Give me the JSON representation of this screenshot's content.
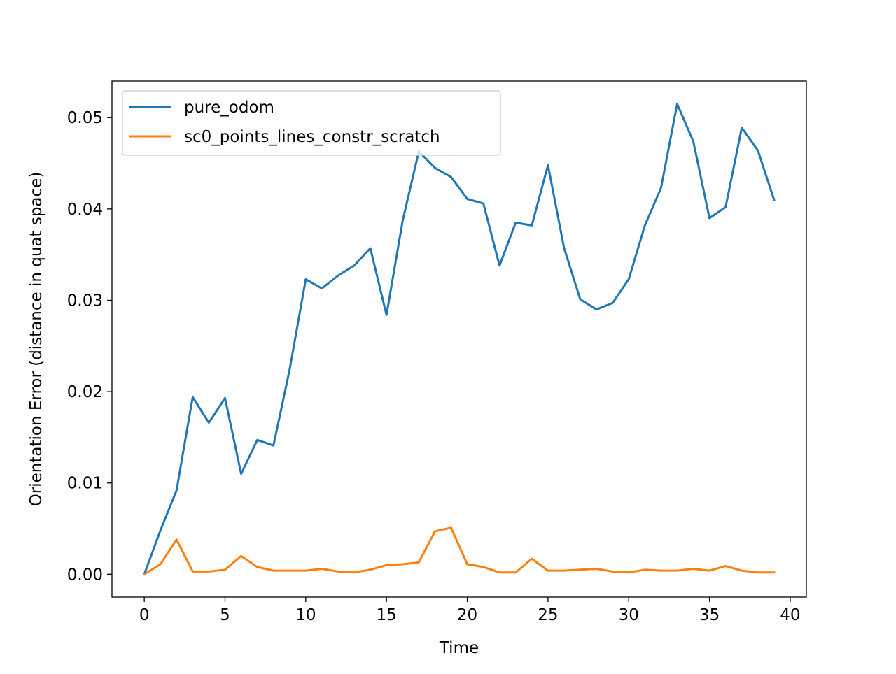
{
  "chart_data": {
    "type": "line",
    "title": "",
    "xlabel": "Time",
    "ylabel": "Orientation Error (distance in quat space)",
    "xlim": [
      -2,
      41
    ],
    "ylim": [
      -0.0025,
      0.054
    ],
    "xticks": [
      0,
      5,
      10,
      15,
      20,
      25,
      30,
      35,
      40
    ],
    "yticks": [
      0.0,
      0.01,
      0.02,
      0.03,
      0.04,
      0.05
    ],
    "ytick_labels": [
      "0.00",
      "0.01",
      "0.02",
      "0.03",
      "0.04",
      "0.05"
    ],
    "grid": false,
    "legend_position": "top-left",
    "x": [
      0,
      1,
      2,
      3,
      4,
      5,
      6,
      7,
      8,
      9,
      10,
      11,
      12,
      13,
      14,
      15,
      16,
      17,
      18,
      19,
      20,
      21,
      22,
      23,
      24,
      25,
      26,
      27,
      28,
      29,
      30,
      31,
      32,
      33,
      34,
      35,
      36,
      37,
      38,
      39
    ],
    "series": [
      {
        "name": "pure_odom",
        "color": "#1f77b4",
        "values": [
          0.0,
          0.0048,
          0.0092,
          0.0194,
          0.0166,
          0.0193,
          0.011,
          0.0147,
          0.0141,
          0.0224,
          0.0323,
          0.0313,
          0.0327,
          0.0338,
          0.0357,
          0.0284,
          0.0387,
          0.0463,
          0.0445,
          0.0435,
          0.0411,
          0.0406,
          0.0338,
          0.0385,
          0.0382,
          0.0448,
          0.0357,
          0.0301,
          0.029,
          0.0297,
          0.0323,
          0.0382,
          0.0423,
          0.0515,
          0.0474,
          0.039,
          0.0402,
          0.0489,
          0.0464,
          0.041
        ]
      },
      {
        "name": "sc0_points_lines_constr_scratch",
        "color": "#ff7f0e",
        "values": [
          0.0,
          0.0011,
          0.0038,
          0.0003,
          0.0003,
          0.0005,
          0.002,
          0.0008,
          0.0004,
          0.0004,
          0.0004,
          0.0006,
          0.0003,
          0.0002,
          0.0005,
          0.001,
          0.0011,
          0.0013,
          0.0047,
          0.0051,
          0.0011,
          0.0008,
          0.0002,
          0.0002,
          0.0017,
          0.0004,
          0.0004,
          0.0005,
          0.0006,
          0.0003,
          0.0002,
          0.0005,
          0.0004,
          0.0004,
          0.0006,
          0.0004,
          0.0009,
          0.0004,
          0.0002,
          0.0002
        ]
      }
    ]
  }
}
